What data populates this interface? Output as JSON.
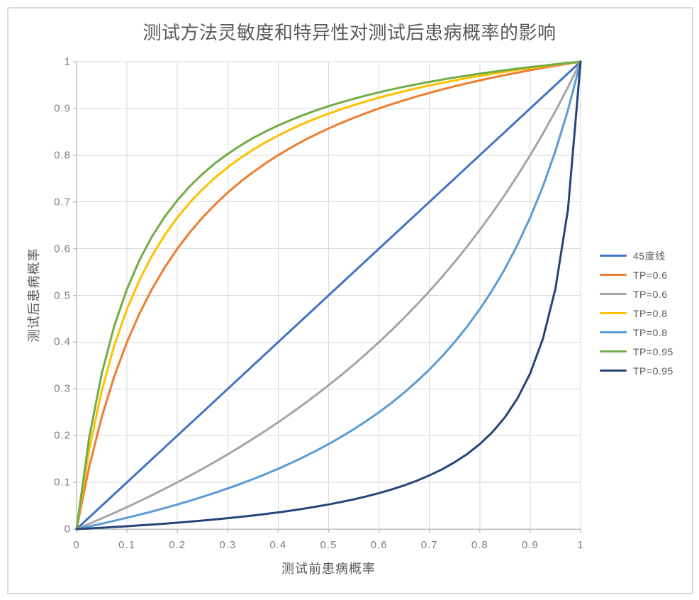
{
  "figure": {
    "background": "#FFFFFF",
    "border_color": "#D9D9D9"
  },
  "chart_data": {
    "type": "line",
    "title": "测试方法灵敏度和特异性对测试后患病概率的影响",
    "xlabel": "测试前患病概率",
    "ylabel": "测试后患病概率",
    "xlim": [
      0,
      1
    ],
    "ylim": [
      0,
      1
    ],
    "grid": true,
    "legend_position": "right",
    "grid_color": "#D9D9D9",
    "axis_color": "#BFBFBF",
    "tick_label_color": "#7F7F7F",
    "text_color": "#595959",
    "x_ticks": [
      0,
      0.1,
      0.2,
      0.3,
      0.4,
      0.5,
      0.6,
      0.7,
      0.8,
      0.9,
      1
    ],
    "x_tick_labels": [
      "0",
      "0.1",
      "0.2",
      "0.3",
      "0.4",
      "0.5",
      "0.6",
      "0.7",
      "0.8",
      "0.9",
      "1"
    ],
    "y_ticks": [
      0,
      0.1,
      0.2,
      0.3,
      0.4,
      0.5,
      0.6,
      0.7,
      0.8,
      0.9,
      1
    ],
    "y_tick_labels": [
      "0",
      "0.1",
      "0.2",
      "0.3",
      "0.4",
      "0.5",
      "0.6",
      "0.7",
      "0.8",
      "0.9",
      "1"
    ],
    "x": [
      0,
      0.025,
      0.05,
      0.075,
      0.1,
      0.125,
      0.15,
      0.175,
      0.2,
      0.225,
      0.25,
      0.275,
      0.3,
      0.325,
      0.35,
      0.375,
      0.4,
      0.425,
      0.45,
      0.475,
      0.5,
      0.525,
      0.55,
      0.575,
      0.6,
      0.625,
      0.65,
      0.675,
      0.7,
      0.725,
      0.75,
      0.775,
      0.8,
      0.825,
      0.85,
      0.875,
      0.9,
      0.925,
      0.95,
      0.975,
      1
    ],
    "series": [
      {
        "name": "45度线",
        "color": "#4472C4",
        "y": [
          0,
          0.025,
          0.05,
          0.075,
          0.1,
          0.125,
          0.15,
          0.175,
          0.2,
          0.225,
          0.25,
          0.275,
          0.3,
          0.325,
          0.35,
          0.375,
          0.4,
          0.425,
          0.45,
          0.475,
          0.5,
          0.525,
          0.55,
          0.575,
          0.6,
          0.625,
          0.65,
          0.675,
          0.7,
          0.725,
          0.75,
          0.775,
          0.8,
          0.825,
          0.85,
          0.875,
          0.9,
          0.925,
          0.95,
          0.975,
          1
        ]
      },
      {
        "name": "TP=0.6",
        "color": "#ED7D31",
        "y": [
          0,
          0.1333,
          0.24,
          0.3273,
          0.4,
          0.4615,
          0.5143,
          0.56,
          0.6,
          0.6353,
          0.6667,
          0.6947,
          0.72,
          0.7429,
          0.7636,
          0.7826,
          0.8,
          0.816,
          0.8308,
          0.8444,
          0.8571,
          0.869,
          0.88,
          0.8903,
          0.9,
          0.9091,
          0.9176,
          0.9257,
          0.9333,
          0.9405,
          0.9474,
          0.9538,
          0.96,
          0.9659,
          0.9714,
          0.9767,
          0.9818,
          0.9867,
          0.9913,
          0.9957,
          1
        ]
      },
      {
        "name": "TP=0.6",
        "color": "#A5A5A5",
        "y": [
          0,
          0.0113,
          0.0229,
          0.0348,
          0.0471,
          0.0597,
          0.0727,
          0.0862,
          0.1,
          0.1143,
          0.129,
          0.1443,
          0.16,
          0.1763,
          0.1931,
          0.2105,
          0.2286,
          0.2473,
          0.2667,
          0.2868,
          0.3077,
          0.3294,
          0.352,
          0.3755,
          0.4,
          0.4255,
          0.4522,
          0.48,
          0.5091,
          0.5395,
          0.5714,
          0.6049,
          0.64,
          0.6769,
          0.7158,
          0.7568,
          0.8,
          0.8457,
          0.8941,
          0.9455,
          1
        ]
      },
      {
        "name": "TP=0.8",
        "color": "#FFC000",
        "y": [
          0,
          0.1702,
          0.2963,
          0.3934,
          0.4706,
          0.5333,
          0.5854,
          0.6292,
          0.6667,
          0.699,
          0.7273,
          0.7521,
          0.7742,
          0.7939,
          0.8116,
          0.8276,
          0.8421,
          0.8553,
          0.8675,
          0.8786,
          0.8889,
          0.8984,
          0.9072,
          0.9154,
          0.9231,
          0.9302,
          0.9369,
          0.9432,
          0.9492,
          0.9547,
          0.96,
          0.965,
          0.9697,
          0.9742,
          0.9784,
          0.9825,
          0.9863,
          0.99,
          0.9935,
          0.9968,
          1
        ]
      },
      {
        "name": "TP=0.8",
        "color": "#5B9BD5",
        "y": [
          0,
          0.0057,
          0.0116,
          0.0177,
          0.0241,
          0.0308,
          0.0377,
          0.045,
          0.0526,
          0.0606,
          0.069,
          0.0777,
          0.087,
          0.0967,
          0.1069,
          0.1176,
          0.129,
          0.1411,
          0.1538,
          0.1674,
          0.1818,
          0.1972,
          0.2136,
          0.2312,
          0.25,
          0.2703,
          0.2921,
          0.3158,
          0.3415,
          0.3694,
          0.4,
          0.4336,
          0.4706,
          0.5116,
          0.5574,
          0.6087,
          0.6667,
          0.7327,
          0.8085,
          0.8966,
          1
        ]
      },
      {
        "name": "TP=0.95",
        "color": "#70AD47",
        "y": [
          0,
          0.1959,
          0.3333,
          0.4351,
          0.5135,
          0.5758,
          0.6264,
          0.6683,
          0.7037,
          0.7339,
          0.76,
          0.7828,
          0.8028,
          0.8206,
          0.8365,
          0.8507,
          0.8636,
          0.8753,
          0.886,
          0.8958,
          0.9048,
          0.913,
          0.9207,
          0.9278,
          0.9344,
          0.9406,
          0.9464,
          0.9518,
          0.9568,
          0.9616,
          0.9661,
          0.9703,
          0.9744,
          0.9782,
          0.9818,
          0.9852,
          0.9884,
          0.9915,
          0.9945,
          0.9973,
          1
        ]
      },
      {
        "name": "TP=0.95",
        "color": "#264478",
        "y": [
          0,
          0.0014,
          0.0029,
          0.0045,
          0.0061,
          0.0079,
          0.0097,
          0.0116,
          0.0137,
          0.0159,
          0.0182,
          0.0206,
          0.0233,
          0.0261,
          0.029,
          0.0323,
          0.0357,
          0.0394,
          0.0435,
          0.0479,
          0.0526,
          0.0579,
          0.0636,
          0.0699,
          0.0769,
          0.0847,
          0.0935,
          0.1034,
          0.1148,
          0.1278,
          0.1429,
          0.1606,
          0.1818,
          0.2075,
          0.2394,
          0.28,
          0.3333,
          0.4066,
          0.5135,
          0.6842,
          1
        ]
      }
    ]
  }
}
